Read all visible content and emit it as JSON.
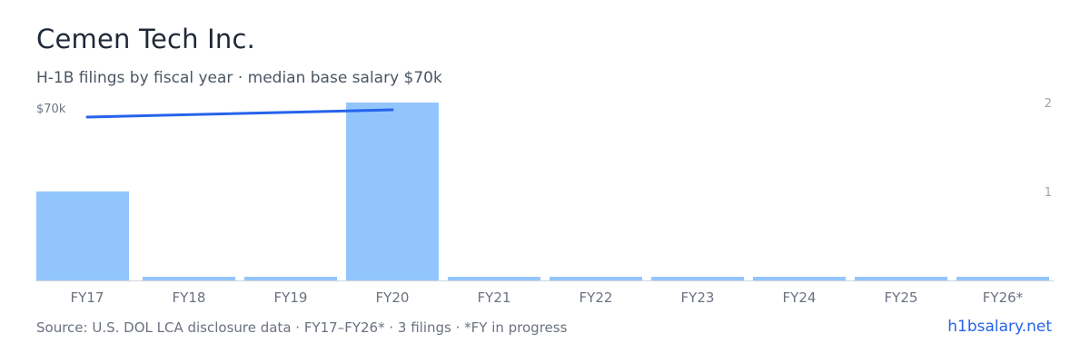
{
  "title": "Cemen Tech Inc.",
  "subtitle": "H-1B filings by fiscal year · median base salary $70k",
  "footer": {
    "source": "Source: U.S. DOL LCA disclosure data · FY17–FY26* · 3 filings · *FY in progress",
    "brand": "h1bsalary.net"
  },
  "colors": {
    "bar": "#93c5fd",
    "line": "#2563eb",
    "axis": "#d1d5db",
    "tick": "#6b7280",
    "right_tick": "#9ca3af"
  },
  "chart_data": {
    "type": "bar",
    "categories": [
      "FY17",
      "FY18",
      "FY19",
      "FY20",
      "FY21",
      "FY22",
      "FY23",
      "FY24",
      "FY25",
      "FY26*"
    ],
    "series": [
      {
        "type": "bar",
        "axis": "right",
        "values": [
          1,
          0,
          0,
          2,
          0,
          0,
          0,
          0,
          0,
          0
        ]
      },
      {
        "type": "line",
        "axis": "left",
        "points": [
          {
            "category": "FY17",
            "value": 70000
          },
          {
            "category": "FY20",
            "value": 70000
          }
        ]
      }
    ],
    "left_axis": {
      "ticks": [
        {
          "value": 70000,
          "label": "$70k"
        }
      ]
    },
    "right_axis": {
      "ylim": [
        0,
        2
      ],
      "ticks": [
        1,
        2
      ]
    }
  }
}
